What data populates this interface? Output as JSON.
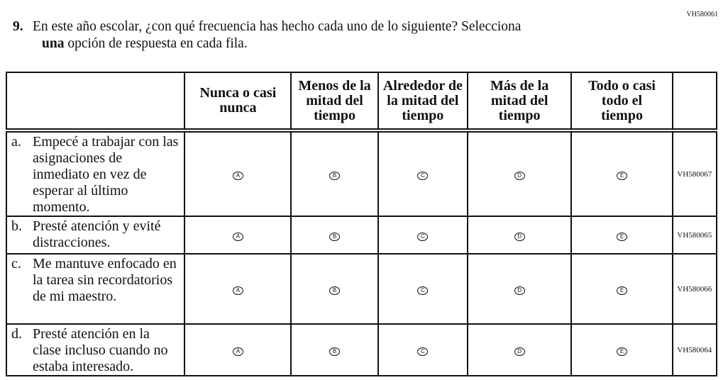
{
  "question_code": "VH580061",
  "question": {
    "number": "9.",
    "line1": "En este año escolar, ¿con qué frecuencia has hecho cada uno de lo siguiente? Selecciona",
    "bold_word": "una",
    "line2_rest": " opción de respuesta en cada fila."
  },
  "columns": [
    "Nunca o casi nunca",
    "Menos de la mitad del tiempo",
    "Alrededor de la mitad del tiempo",
    "Más de la mitad del tiempo",
    "Todo o casi todo el tiempo"
  ],
  "options": [
    "A",
    "B",
    "C",
    "D",
    "E"
  ],
  "rows": [
    {
      "letter": "a.",
      "text": "Empecé a trabajar con las asignaciones de inmediato en vez de esperar al último momento.",
      "code": "VH580067"
    },
    {
      "letter": "b.",
      "text": "Presté atención y evité distracciones.",
      "code": "VH580065"
    },
    {
      "letter": "c.",
      "text": "Me mantuve enfocado en la tarea sin recordatorios de mi maestro.",
      "code": "VH580066"
    },
    {
      "letter": "d.",
      "text": "Presté atención en la clase incluso cuando no estaba interesado.",
      "code": "VH580064"
    }
  ]
}
